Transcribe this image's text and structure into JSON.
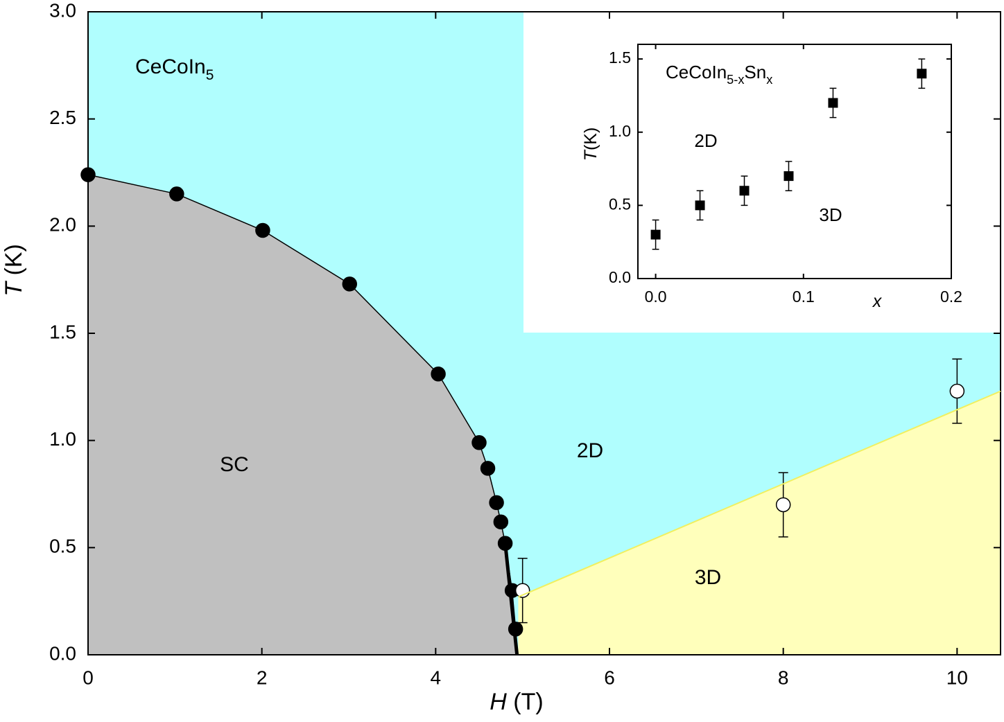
{
  "chart_data": [
    {
      "type": "scatter",
      "title": [
        {
          "text": "CeCoIn"
        },
        {
          "text": "5",
          "sub": true
        }
      ],
      "x_label": [
        {
          "text": "H",
          "italic": true
        },
        {
          "text": " (T)"
        }
      ],
      "y_label": [
        {
          "text": "T",
          "italic": true
        },
        {
          "text": " (K)"
        }
      ],
      "annotations": [
        "SC",
        "2D",
        "3D"
      ],
      "xlim": [
        0,
        10.5
      ],
      "ylim": [
        0,
        3
      ],
      "xticks": [
        0,
        2,
        4,
        6,
        8,
        10
      ],
      "yticks": [
        {
          "value": 0,
          "label": "0.0"
        },
        0.5,
        {
          "value": 1,
          "label": "1.0"
        },
        1.5,
        {
          "value": 2,
          "label": "2.0"
        },
        2.5,
        {
          "value": 3,
          "label": "3.0"
        }
      ],
      "background_color": "#b0fefe",
      "series": [
        {
          "marker": "filled-circle",
          "color": "#000000",
          "fill_color": "#c0c0c0",
          "x": [
            0,
            1.02,
            2.01,
            3.01,
            4.03,
            4.5,
            4.6,
            4.7,
            4.75,
            4.8,
            4.88,
            4.92
          ],
          "y": [
            2.24,
            2.15,
            1.98,
            1.73,
            1.31,
            0.99,
            0.87,
            0.71,
            0.62,
            0.52,
            0.3,
            0.12
          ]
        },
        {
          "marker": "open-circle",
          "color": "#000000",
          "x": [
            5,
            8,
            10
          ],
          "y": [
            0.3,
            0.7,
            1.23
          ],
          "errors": [
            0.15,
            0.15,
            0.15
          ]
        },
        {
          "marker": "line",
          "color": "#f0f060",
          "fill_color": "#ffffbb",
          "x": [
            4.95,
            10.5
          ],
          "y": [
            0.27,
            1.23
          ]
        }
      ]
    },
    {
      "type": "scatter",
      "title": [
        {
          "text": "CeCoIn"
        },
        {
          "text": "5-x",
          "sub": true
        },
        {
          "text": "Sn"
        },
        {
          "text": "x",
          "sub": true
        }
      ],
      "x_label": [
        {
          "text": "x",
          "italic": true
        }
      ],
      "y_label": [
        {
          "text": "T",
          "italic": true
        },
        {
          "text": "(K)"
        }
      ],
      "annotations": [
        "2D",
        "3D"
      ],
      "xlim": [
        -0.012,
        0.2
      ],
      "ylim": [
        0,
        1.6
      ],
      "xticks": [
        {
          "value": 0,
          "label": "0.0"
        },
        0.1,
        0.2
      ],
      "yticks": [
        {
          "value": 0,
          "label": "0.0"
        },
        0.5,
        {
          "value": 1,
          "label": "1.0"
        },
        1.5
      ],
      "series": [
        {
          "marker": "filled-square",
          "color": "#000000",
          "x": [
            0,
            0.03,
            0.06,
            0.09,
            0.12,
            0.18
          ],
          "y": [
            0.3,
            0.5,
            0.6,
            0.7,
            1.2,
            1.4
          ],
          "errors": [
            0.1,
            0.1,
            0.1,
            0.1,
            0.1,
            0.1
          ]
        }
      ]
    }
  ]
}
